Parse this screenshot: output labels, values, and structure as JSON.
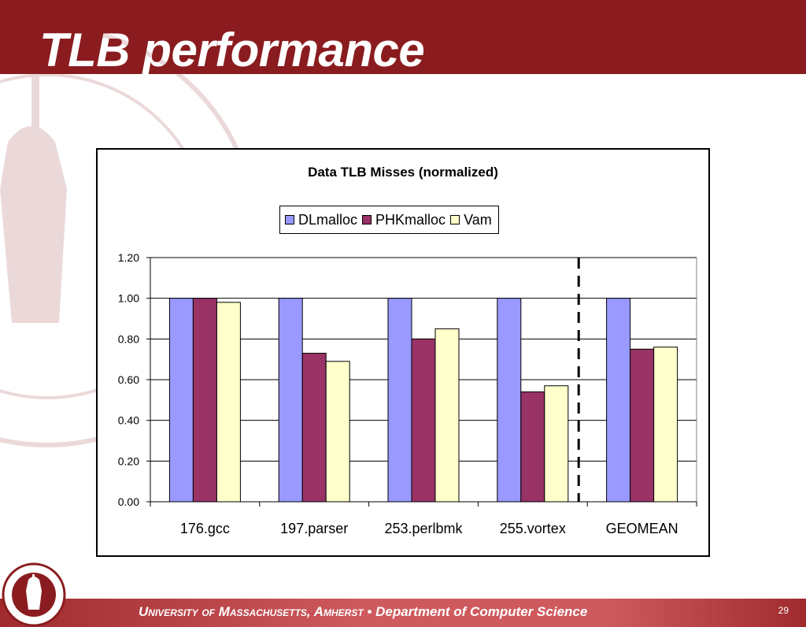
{
  "slide": {
    "title": "TLB performance",
    "footer_university": "University of Massachusetts, Amherst",
    "footer_separator": "•",
    "footer_department": "Department of Computer Science",
    "page_number": "29"
  },
  "chart_data": {
    "type": "bar",
    "title": "Data TLB Misses (normalized)",
    "categories": [
      "176.gcc",
      "197.parser",
      "253.perlbmk",
      "255.vortex",
      "GEOMEAN"
    ],
    "series": [
      {
        "name": "DLmalloc",
        "color": "#9999ff",
        "values": [
          1.0,
          1.0,
          1.0,
          1.0,
          1.0
        ]
      },
      {
        "name": "PHKmalloc",
        "color": "#993366",
        "values": [
          1.0,
          0.73,
          0.8,
          0.54,
          0.75
        ]
      },
      {
        "name": "Vam",
        "color": "#ffffcc",
        "values": [
          0.98,
          0.69,
          0.85,
          0.57,
          0.76
        ]
      }
    ],
    "ylim": [
      0,
      1.2
    ],
    "yticks": [
      "0.00",
      "0.20",
      "0.40",
      "0.60",
      "0.80",
      "1.00",
      "1.20"
    ],
    "xlabel": "",
    "ylabel": "",
    "grid": true,
    "legend_position": "top",
    "separator_line": "dashed vertical line between 255.vortex and GEOMEAN"
  }
}
